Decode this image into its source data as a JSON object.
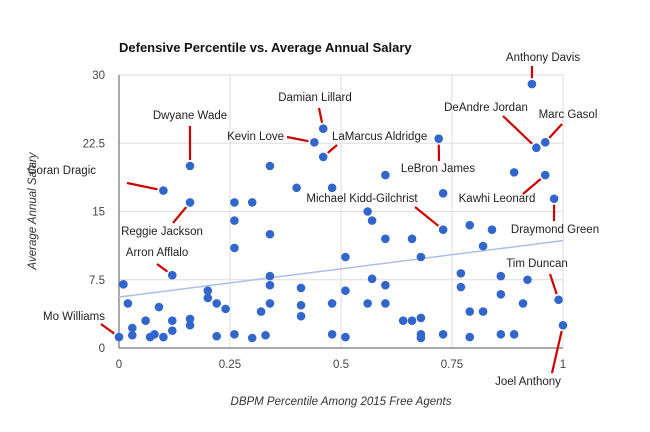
{
  "chart_data": {
    "type": "scatter",
    "title": "Defensive Percentile vs. Average Annual Salary",
    "xlabel": "DBPM Percentile Among 2015 Free Agents",
    "ylabel": "Average Annual Salary",
    "xlim": [
      0,
      1
    ],
    "ylim": [
      0,
      30
    ],
    "xticks": [
      0,
      0.25,
      0.5,
      0.75,
      1
    ],
    "xtick_labels": [
      "0",
      "0.25",
      "0.5",
      "0.75",
      "1"
    ],
    "yticks": [
      0,
      7.5,
      15,
      22.5,
      30
    ],
    "ytick_labels": [
      "0",
      "7.5",
      "15",
      "22.5",
      "30"
    ],
    "grid": true,
    "colors": {
      "points": "#3366cc",
      "trendline": "#a9bfe8",
      "annotation_line": "#cc0000",
      "grid": "#dddddd"
    },
    "trendline": {
      "type": "linear",
      "x": [
        0,
        1
      ],
      "y": [
        5.6,
        11.8
      ]
    },
    "points": [
      {
        "x": 0.0,
        "y": 1.2,
        "label": "Mo Williams"
      },
      {
        "x": 0.01,
        "y": 7.0
      },
      {
        "x": 0.02,
        "y": 4.9
      },
      {
        "x": 0.03,
        "y": 2.2
      },
      {
        "x": 0.03,
        "y": 1.4
      },
      {
        "x": 0.06,
        "y": 3.0
      },
      {
        "x": 0.07,
        "y": 1.2
      },
      {
        "x": 0.08,
        "y": 1.5
      },
      {
        "x": 0.09,
        "y": 4.5
      },
      {
        "x": 0.1,
        "y": 1.2
      },
      {
        "x": 0.1,
        "y": 17.3,
        "label": "Goran Dragic"
      },
      {
        "x": 0.12,
        "y": 8.0,
        "label": "Arron Afflalo"
      },
      {
        "x": 0.12,
        "y": 3.0
      },
      {
        "x": 0.12,
        "y": 1.9
      },
      {
        "x": 0.16,
        "y": 20.0,
        "label": "Dwyane Wade"
      },
      {
        "x": 0.16,
        "y": 16.0,
        "label": "Reggie Jackson"
      },
      {
        "x": 0.16,
        "y": 3.2
      },
      {
        "x": 0.16,
        "y": 2.5
      },
      {
        "x": 0.2,
        "y": 6.3
      },
      {
        "x": 0.2,
        "y": 5.5
      },
      {
        "x": 0.22,
        "y": 4.9
      },
      {
        "x": 0.24,
        "y": 4.3
      },
      {
        "x": 0.22,
        "y": 1.3
      },
      {
        "x": 0.26,
        "y": 16.0
      },
      {
        "x": 0.26,
        "y": 14.0
      },
      {
        "x": 0.26,
        "y": 11.0
      },
      {
        "x": 0.26,
        "y": 1.5
      },
      {
        "x": 0.3,
        "y": 16.0
      },
      {
        "x": 0.3,
        "y": 1.1
      },
      {
        "x": 0.33,
        "y": 1.4
      },
      {
        "x": 0.32,
        "y": 4.0
      },
      {
        "x": 0.34,
        "y": 20.0
      },
      {
        "x": 0.34,
        "y": 12.5
      },
      {
        "x": 0.34,
        "y": 7.9
      },
      {
        "x": 0.34,
        "y": 6.9
      },
      {
        "x": 0.34,
        "y": 4.9
      },
      {
        "x": 0.4,
        "y": 17.6
      },
      {
        "x": 0.41,
        "y": 6.6
      },
      {
        "x": 0.41,
        "y": 4.7
      },
      {
        "x": 0.41,
        "y": 3.5
      },
      {
        "x": 0.44,
        "y": 22.6,
        "label": "Kevin Love"
      },
      {
        "x": 0.46,
        "y": 24.1,
        "label": "Damian Lillard"
      },
      {
        "x": 0.46,
        "y": 21.0,
        "label": "LaMarcus Aldridge"
      },
      {
        "x": 0.48,
        "y": 17.6
      },
      {
        "x": 0.48,
        "y": 4.9
      },
      {
        "x": 0.48,
        "y": 1.5
      },
      {
        "x": 0.51,
        "y": 10.0
      },
      {
        "x": 0.51,
        "y": 6.3
      },
      {
        "x": 0.51,
        "y": 1.2
      },
      {
        "x": 0.56,
        "y": 15.0
      },
      {
        "x": 0.57,
        "y": 14.0
      },
      {
        "x": 0.57,
        "y": 7.6
      },
      {
        "x": 0.56,
        "y": 4.9
      },
      {
        "x": 0.6,
        "y": 19.0
      },
      {
        "x": 0.6,
        "y": 12.0
      },
      {
        "x": 0.6,
        "y": 6.9
      },
      {
        "x": 0.6,
        "y": 4.9
      },
      {
        "x": 0.64,
        "y": 3.0
      },
      {
        "x": 0.66,
        "y": 12.0
      },
      {
        "x": 0.66,
        "y": 3.0
      },
      {
        "x": 0.68,
        "y": 10.0
      },
      {
        "x": 0.68,
        "y": 3.3
      },
      {
        "x": 0.68,
        "y": 1.5
      },
      {
        "x": 0.68,
        "y": 1.1
      },
      {
        "x": 0.72,
        "y": 23.0,
        "label": "LeBron James"
      },
      {
        "x": 0.73,
        "y": 17.0
      },
      {
        "x": 0.73,
        "y": 13.0,
        "label": "Michael Kidd-Gilchrist"
      },
      {
        "x": 0.73,
        "y": 1.5
      },
      {
        "x": 0.77,
        "y": 8.2
      },
      {
        "x": 0.77,
        "y": 6.7
      },
      {
        "x": 0.79,
        "y": 13.5
      },
      {
        "x": 0.79,
        "y": 4.0
      },
      {
        "x": 0.79,
        "y": 1.2
      },
      {
        "x": 0.82,
        "y": 11.2
      },
      {
        "x": 0.82,
        "y": 4.0
      },
      {
        "x": 0.84,
        "y": 13.0
      },
      {
        "x": 0.86,
        "y": 7.9
      },
      {
        "x": 0.86,
        "y": 5.9
      },
      {
        "x": 0.86,
        "y": 1.5
      },
      {
        "x": 0.89,
        "y": 19.3
      },
      {
        "x": 0.89,
        "y": 1.5
      },
      {
        "x": 0.91,
        "y": 4.9
      },
      {
        "x": 0.92,
        "y": 7.5
      },
      {
        "x": 0.93,
        "y": 29.0,
        "label": "Anthony Davis"
      },
      {
        "x": 0.94,
        "y": 22.0,
        "label": "DeAndre Jordan"
      },
      {
        "x": 0.96,
        "y": 22.6,
        "label": "Marc Gasol"
      },
      {
        "x": 0.96,
        "y": 19.0,
        "label": "Kawhi Leonard"
      },
      {
        "x": 0.98,
        "y": 16.4,
        "label": "Draymond Green"
      },
      {
        "x": 0.99,
        "y": 5.3,
        "label": "Tim Duncan"
      },
      {
        "x": 1.0,
        "y": 2.5,
        "label": "Joel Anthony"
      }
    ]
  }
}
